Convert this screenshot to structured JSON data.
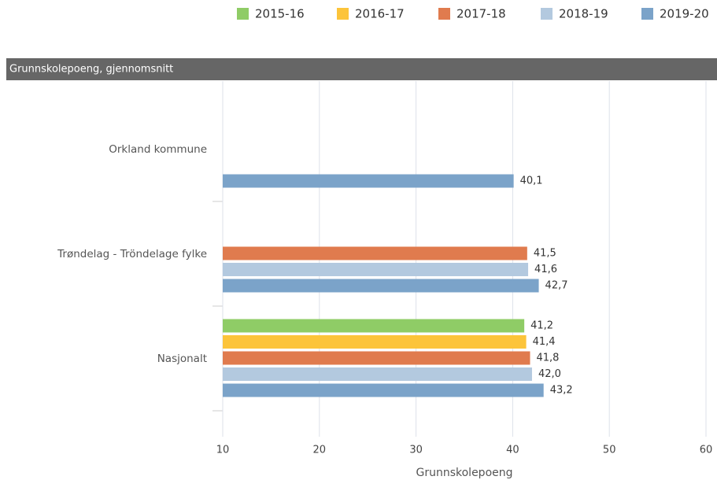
{
  "chart_data": {
    "type": "barh",
    "title": "Grunnskolepoeng, gjennomsnitt",
    "xlabel": "Grunnskolepoeng",
    "categories": [
      "Orkland kommune",
      "Trøndelag - Tröndelage fylke",
      "Nasjonalt"
    ],
    "series": [
      {
        "name": "2015-16",
        "color": "#8fcc66",
        "values": [
          null,
          null,
          41.2
        ],
        "value_labels": [
          null,
          null,
          "41,2"
        ]
      },
      {
        "name": "2016-17",
        "color": "#fcc43a",
        "values": [
          null,
          null,
          41.4
        ],
        "value_labels": [
          null,
          null,
          "41,4"
        ]
      },
      {
        "name": "2017-18",
        "color": "#e07b4e",
        "values": [
          null,
          41.5,
          41.8
        ],
        "value_labels": [
          null,
          "41,5",
          "41,8"
        ]
      },
      {
        "name": "2018-19",
        "color": "#b3c9df",
        "values": [
          null,
          41.6,
          42.0
        ],
        "value_labels": [
          null,
          "41,6",
          "42,0"
        ]
      },
      {
        "name": "2019-20",
        "color": "#7ba3c9",
        "values": [
          40.1,
          42.7,
          43.2
        ],
        "value_labels": [
          "40,1",
          "42,7",
          "43,2"
        ]
      }
    ],
    "xlim": [
      10,
      60
    ],
    "xticks": [
      10,
      20,
      30,
      40,
      50,
      60
    ],
    "grid": true,
    "legend": "top"
  }
}
